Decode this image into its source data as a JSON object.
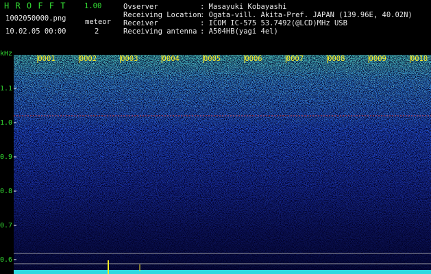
{
  "header": {
    "app_name": "H R O F F T",
    "version": "1.00",
    "file_name": "1002050000.png",
    "meteor_label": "meteor",
    "timestamp": "10.02.05 00:00",
    "meteor_count": "2",
    "info": [
      {
        "label": "Ovserver",
        "value": ": Masayuki Kobayashi"
      },
      {
        "label": "Receiving Location",
        "value": ": Ogata-vill. Akita-Pref. JAPAN (139.96E, 40.02N)"
      },
      {
        "label": "Receiver",
        "value": ": ICOM IC-575 53.7492(@LCD)MHz USB"
      },
      {
        "label": "Receiving antenna",
        "value": ": A504HB(yagi 4el)"
      }
    ]
  },
  "spectrogram": {
    "y_unit": "kHz",
    "yticks": [
      {
        "value": 1.1,
        "label": "1.1"
      },
      {
        "value": 1.0,
        "label": "1.0"
      },
      {
        "value": 0.9,
        "label": "0.9"
      },
      {
        "value": 0.8,
        "label": "0.8"
      },
      {
        "value": 0.7,
        "label": "0.7"
      },
      {
        "value": 0.6,
        "label": "0.6"
      }
    ],
    "time_labels": [
      "0001",
      "0002",
      "0003",
      "0004",
      "0005",
      "0006",
      "0007",
      "0008",
      "0009",
      "0010"
    ]
  }
}
